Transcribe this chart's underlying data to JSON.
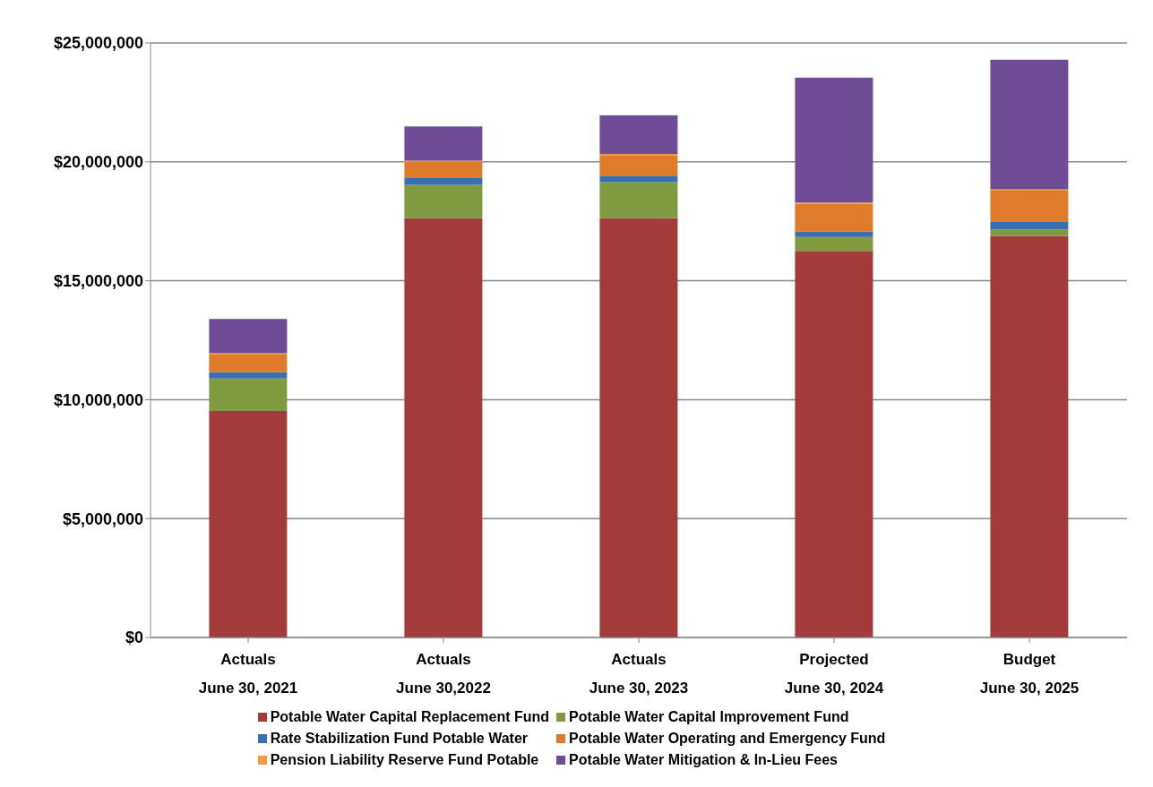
{
  "chart_data": {
    "type": "bar",
    "stacked": true,
    "categories": [
      "Actuals\nJune 30, 2021",
      "Actuals\nJune 30,2022",
      "Actuals\nJune 30, 2023",
      "Projected\nJune 30, 2024",
      "Budget\nJune 30, 2025"
    ],
    "series": [
      {
        "name": "Potable Water Capital Replacement Fund",
        "color": "#a23b3a",
        "values": [
          9530000,
          17630000,
          17630000,
          16260000,
          16890000
        ]
      },
      {
        "name": "Potable Water Capital Improvement Fund",
        "color": "#7f9a3f",
        "values": [
          1360000,
          1400000,
          1520000,
          580000,
          270000
        ]
      },
      {
        "name": "Rate Stabilization Fund Potable Water",
        "color": "#3a6fb0",
        "values": [
          270000,
          310000,
          270000,
          230000,
          310000
        ]
      },
      {
        "name": "Potable Water Operating and Emergency Fund",
        "color": "#e07b2c",
        "values": [
          740000,
          660000,
          860000,
          1170000,
          1320000
        ]
      },
      {
        "name": "Pension Liability Reserve Fund Potable",
        "color": "#f59a3c",
        "values": [
          50000,
          50000,
          50000,
          50000,
          50000
        ]
      },
      {
        "name": "Potable Water Mitigation & In-Lieu Fees",
        "color": "#6e4c96",
        "values": [
          1440000,
          1440000,
          1630000,
          5250000,
          5450000
        ]
      }
    ],
    "ylim": [
      0,
      25000000
    ],
    "yticks": [
      {
        "value": 0,
        "label": "$0"
      },
      {
        "value": 5000000,
        "label": "$5,000,000"
      },
      {
        "value": 10000000,
        "label": "$10,000,000"
      },
      {
        "value": 15000000,
        "label": "$15,000,000"
      },
      {
        "value": 20000000,
        "label": "$20,000,000"
      },
      {
        "value": 25000000,
        "label": "$25,000,000"
      }
    ],
    "grid": "y",
    "legend": "bottom"
  }
}
